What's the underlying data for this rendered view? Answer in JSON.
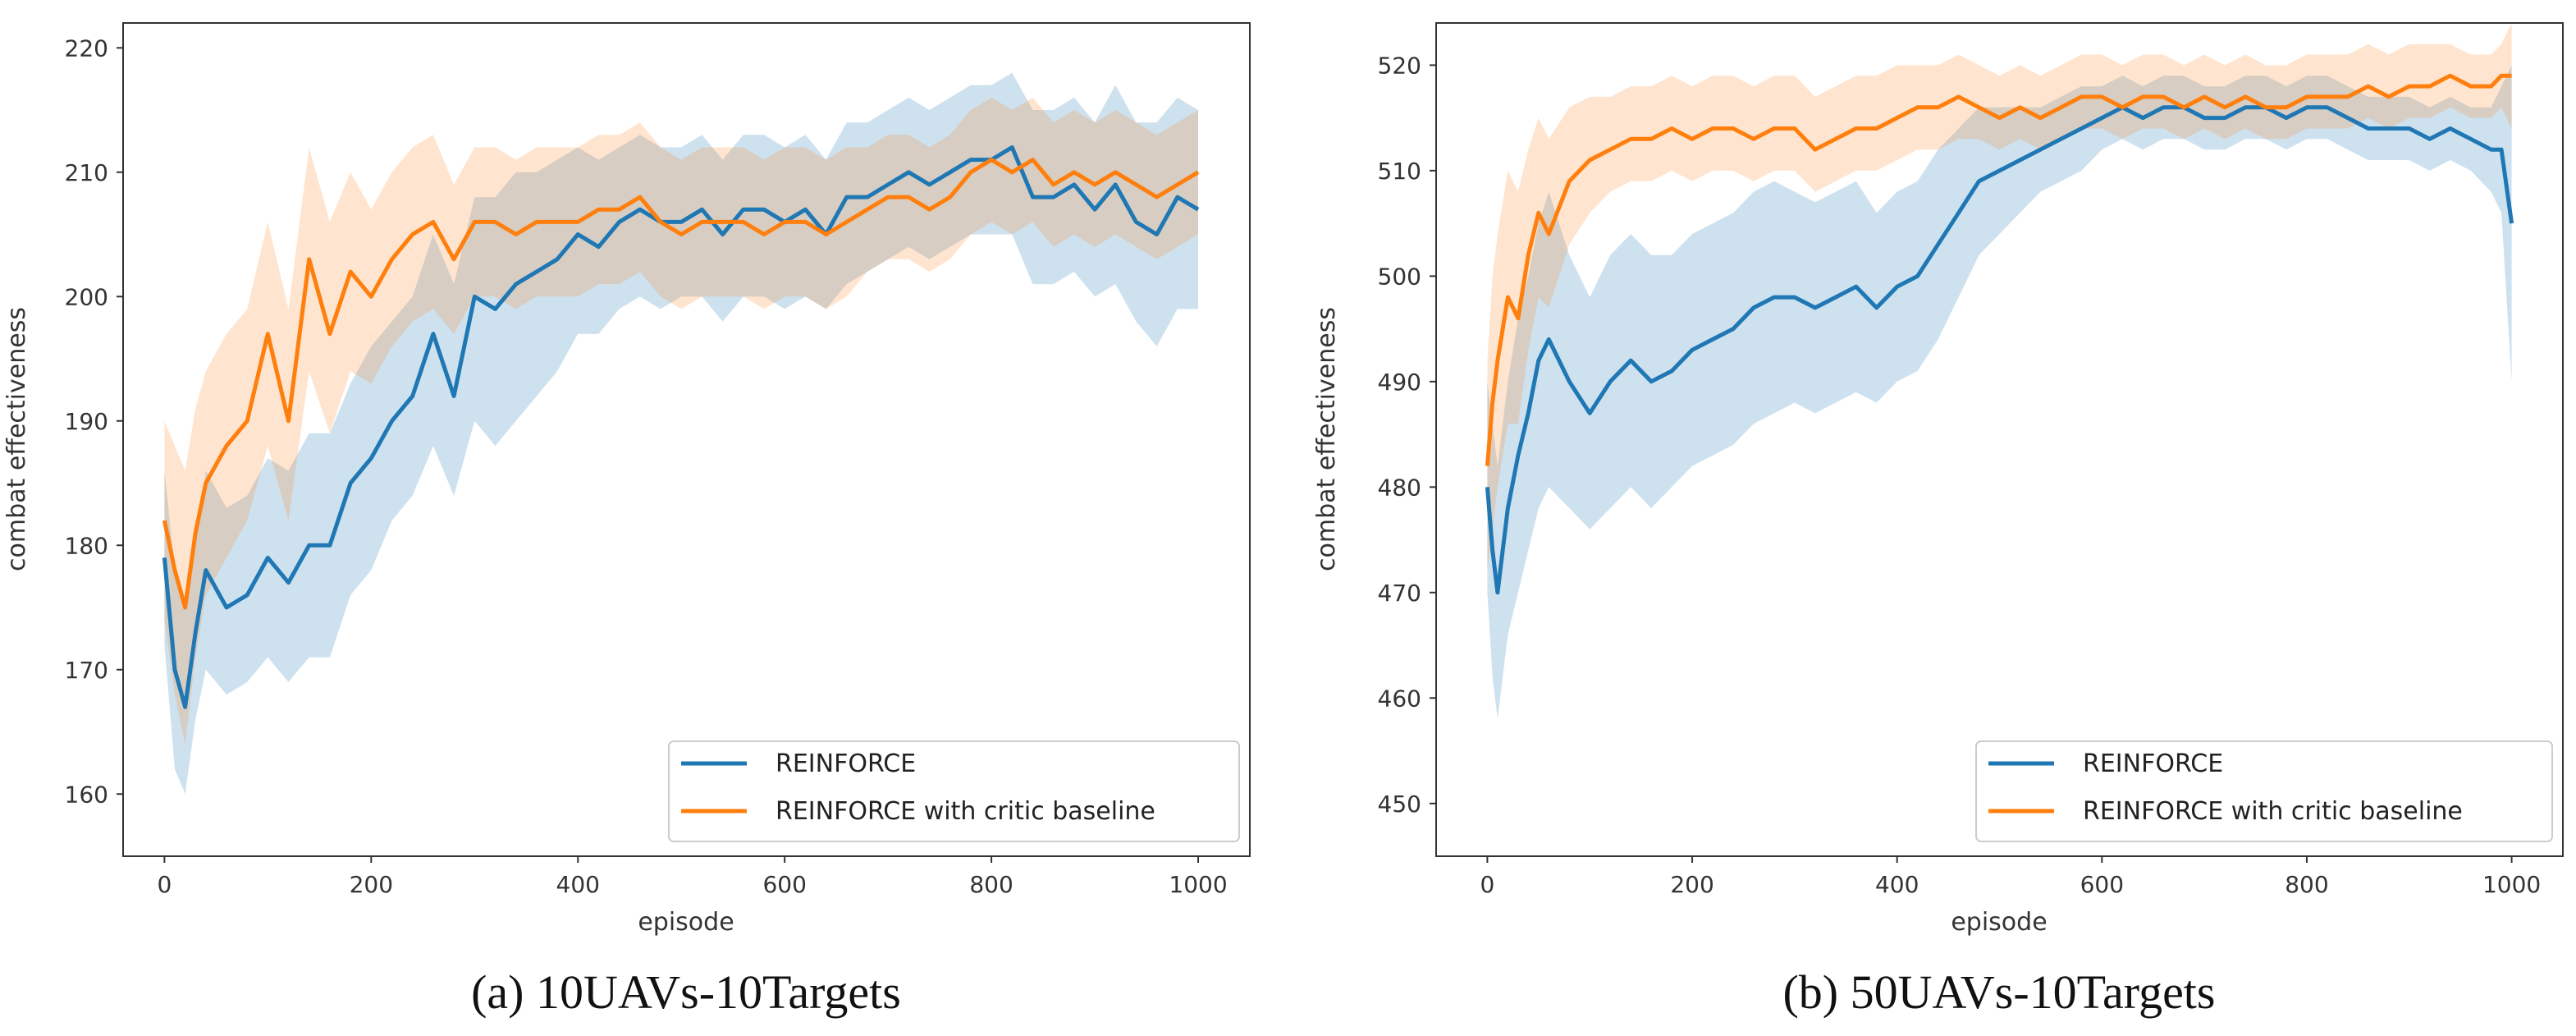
{
  "chart_data": [
    {
      "type": "line",
      "caption": "(a) 10UAVs-10Targets",
      "xlabel": "episode",
      "ylabel": "combat effectiveness",
      "xlim": [
        -40,
        1050
      ],
      "ylim": [
        155,
        222
      ],
      "xticks": [
        0,
        200,
        400,
        600,
        800,
        1000
      ],
      "yticks": [
        160,
        170,
        180,
        190,
        200,
        210,
        220
      ],
      "grid": false,
      "legend_position": "lower-right",
      "colors": {
        "REINFORCE": "#1f77b4",
        "critic": "#ff7f0e"
      },
      "series": [
        {
          "name": "REINFORCE",
          "x": [
            0,
            10,
            20,
            30,
            40,
            60,
            80,
            100,
            120,
            140,
            160,
            180,
            200,
            220,
            240,
            260,
            280,
            300,
            320,
            340,
            360,
            380,
            400,
            420,
            440,
            460,
            480,
            500,
            520,
            540,
            560,
            580,
            600,
            620,
            640,
            660,
            680,
            700,
            720,
            740,
            760,
            780,
            800,
            820,
            840,
            860,
            880,
            900,
            920,
            940,
            960,
            980,
            1000
          ],
          "values": [
            179,
            170,
            167,
            173,
            178,
            175,
            176,
            179,
            177,
            180,
            180,
            185,
            187,
            190,
            192,
            197,
            192,
            200,
            199,
            201,
            202,
            203,
            205,
            204,
            206,
            207,
            206,
            206,
            207,
            205,
            207,
            207,
            206,
            207,
            205,
            208,
            208,
            209,
            210,
            209,
            210,
            211,
            211,
            212,
            208,
            208,
            209,
            207,
            209,
            206,
            205,
            208,
            207
          ],
          "lower": [
            172,
            162,
            160,
            166,
            170,
            168,
            169,
            171,
            169,
            171,
            171,
            176,
            178,
            182,
            184,
            188,
            184,
            190,
            188,
            190,
            192,
            194,
            197,
            197,
            199,
            200,
            199,
            200,
            200,
            198,
            200,
            200,
            199,
            200,
            199,
            201,
            202,
            203,
            204,
            203,
            204,
            205,
            205,
            205,
            201,
            201,
            202,
            200,
            201,
            198,
            196,
            199,
            199
          ],
          "upper": [
            186,
            178,
            175,
            180,
            186,
            183,
            184,
            187,
            186,
            189,
            189,
            193,
            196,
            198,
            200,
            205,
            201,
            208,
            208,
            210,
            210,
            211,
            212,
            211,
            212,
            213,
            212,
            212,
            213,
            211,
            213,
            213,
            212,
            213,
            211,
            214,
            214,
            215,
            216,
            215,
            216,
            217,
            217,
            218,
            215,
            215,
            216,
            214,
            217,
            214,
            214,
            216,
            215
          ]
        },
        {
          "name": "REINFORCE with critic baseline",
          "x": [
            0,
            10,
            20,
            30,
            40,
            60,
            80,
            100,
            120,
            140,
            160,
            180,
            200,
            220,
            240,
            260,
            280,
            300,
            320,
            340,
            360,
            380,
            400,
            420,
            440,
            460,
            480,
            500,
            520,
            540,
            560,
            580,
            600,
            620,
            640,
            660,
            680,
            700,
            720,
            740,
            760,
            780,
            800,
            820,
            840,
            860,
            880,
            900,
            920,
            940,
            960,
            980,
            1000
          ],
          "values": [
            182,
            178,
            175,
            181,
            185,
            188,
            190,
            197,
            190,
            203,
            197,
            202,
            200,
            203,
            205,
            206,
            203,
            206,
            206,
            205,
            206,
            206,
            206,
            207,
            207,
            208,
            206,
            205,
            206,
            206,
            206,
            205,
            206,
            206,
            205,
            206,
            207,
            208,
            208,
            207,
            208,
            210,
            211,
            210,
            211,
            209,
            210,
            209,
            210,
            209,
            208,
            209,
            210
          ],
          "lower": [
            174,
            168,
            164,
            171,
            176,
            179,
            182,
            188,
            182,
            194,
            189,
            194,
            193,
            196,
            198,
            199,
            197,
            200,
            200,
            199,
            200,
            200,
            200,
            201,
            201,
            202,
            200,
            199,
            200,
            200,
            200,
            199,
            200,
            200,
            199,
            200,
            202,
            203,
            203,
            202,
            203,
            205,
            206,
            205,
            206,
            204,
            205,
            204,
            205,
            204,
            203,
            204,
            205
          ],
          "upper": [
            190,
            188,
            186,
            191,
            194,
            197,
            199,
            206,
            199,
            212,
            206,
            210,
            207,
            210,
            212,
            213,
            209,
            212,
            212,
            211,
            212,
            212,
            212,
            213,
            213,
            214,
            212,
            211,
            212,
            212,
            212,
            211,
            212,
            212,
            211,
            212,
            212,
            213,
            213,
            212,
            213,
            215,
            216,
            215,
            216,
            214,
            215,
            214,
            215,
            214,
            213,
            214,
            215
          ]
        }
      ]
    },
    {
      "type": "line",
      "caption": "(b) 50UAVs-10Targets",
      "xlabel": "episode",
      "ylabel": "combat effectiveness",
      "xlim": [
        -50,
        1050
      ],
      "ylim": [
        445,
        524
      ],
      "xticks": [
        0,
        200,
        400,
        600,
        800,
        1000
      ],
      "yticks": [
        450,
        460,
        470,
        480,
        490,
        500,
        510,
        520
      ],
      "grid": false,
      "legend_position": "lower-right",
      "colors": {
        "REINFORCE": "#1f77b4",
        "critic": "#ff7f0e"
      },
      "series": [
        {
          "name": "REINFORCE",
          "x": [
            0,
            5,
            10,
            20,
            30,
            40,
            50,
            60,
            80,
            100,
            120,
            140,
            160,
            180,
            200,
            220,
            240,
            260,
            280,
            300,
            320,
            340,
            360,
            380,
            400,
            420,
            440,
            460,
            480,
            500,
            520,
            540,
            560,
            580,
            600,
            620,
            640,
            660,
            680,
            700,
            720,
            740,
            760,
            780,
            800,
            820,
            840,
            860,
            880,
            900,
            920,
            940,
            960,
            980,
            990,
            1000
          ],
          "values": [
            480,
            474,
            470,
            478,
            483,
            487,
            492,
            494,
            490,
            487,
            490,
            492,
            490,
            491,
            493,
            494,
            495,
            497,
            498,
            498,
            497,
            498,
            499,
            497,
            499,
            500,
            503,
            506,
            509,
            510,
            511,
            512,
            513,
            514,
            515,
            516,
            515,
            516,
            516,
            515,
            515,
            516,
            516,
            515,
            516,
            516,
            515,
            514,
            514,
            514,
            513,
            514,
            513,
            512,
            512,
            505
          ],
          "lower": [
            470,
            462,
            458,
            466,
            470,
            474,
            478,
            480,
            478,
            476,
            478,
            480,
            478,
            480,
            482,
            483,
            484,
            486,
            487,
            488,
            487,
            488,
            489,
            488,
            490,
            491,
            494,
            498,
            502,
            504,
            506,
            508,
            509,
            510,
            512,
            513,
            512,
            513,
            513,
            512,
            512,
            513,
            513,
            512,
            513,
            513,
            512,
            511,
            511,
            511,
            510,
            511,
            510,
            508,
            506,
            490
          ],
          "upper": [
            490,
            486,
            482,
            490,
            496,
            500,
            505,
            508,
            502,
            498,
            502,
            504,
            502,
            502,
            504,
            505,
            506,
            508,
            509,
            508,
            507,
            508,
            509,
            506,
            508,
            509,
            512,
            514,
            516,
            516,
            516,
            516,
            517,
            518,
            518,
            519,
            518,
            519,
            519,
            518,
            518,
            519,
            519,
            518,
            519,
            519,
            518,
            517,
            517,
            517,
            516,
            517,
            516,
            516,
            518,
            520
          ]
        },
        {
          "name": "REINFORCE with critic baseline",
          "x": [
            0,
            5,
            10,
            20,
            30,
            40,
            50,
            60,
            80,
            100,
            120,
            140,
            160,
            180,
            200,
            220,
            240,
            260,
            280,
            300,
            320,
            340,
            360,
            380,
            400,
            420,
            440,
            460,
            480,
            500,
            520,
            540,
            560,
            580,
            600,
            620,
            640,
            660,
            680,
            700,
            720,
            740,
            760,
            780,
            800,
            820,
            840,
            860,
            880,
            900,
            920,
            940,
            960,
            980,
            990,
            1000
          ],
          "values": [
            482,
            488,
            492,
            498,
            496,
            502,
            506,
            504,
            509,
            511,
            512,
            513,
            513,
            514,
            513,
            514,
            514,
            513,
            514,
            514,
            512,
            513,
            514,
            514,
            515,
            516,
            516,
            517,
            516,
            515,
            516,
            515,
            516,
            517,
            517,
            516,
            517,
            517,
            516,
            517,
            516,
            517,
            516,
            516,
            517,
            517,
            517,
            518,
            517,
            518,
            518,
            519,
            518,
            518,
            519,
            519
          ],
          "lower": [
            472,
            476,
            480,
            486,
            486,
            493,
            498,
            497,
            503,
            506,
            508,
            509,
            509,
            510,
            509,
            510,
            510,
            509,
            510,
            510,
            508,
            509,
            510,
            510,
            511,
            512,
            512,
            513,
            513,
            512,
            513,
            512,
            513,
            514,
            514,
            513,
            514,
            514,
            513,
            514,
            513,
            514,
            513,
            513,
            514,
            514,
            514,
            515,
            514,
            515,
            515,
            516,
            515,
            515,
            516,
            514
          ],
          "upper": [
            492,
            500,
            504,
            510,
            508,
            512,
            515,
            513,
            516,
            517,
            517,
            518,
            518,
            519,
            518,
            519,
            519,
            518,
            519,
            519,
            517,
            518,
            519,
            519,
            520,
            520,
            520,
            521,
            520,
            519,
            520,
            519,
            520,
            521,
            521,
            520,
            521,
            521,
            520,
            521,
            520,
            521,
            520,
            520,
            521,
            521,
            521,
            522,
            521,
            522,
            522,
            522,
            521,
            521,
            522,
            524
          ]
        }
      ]
    }
  ]
}
